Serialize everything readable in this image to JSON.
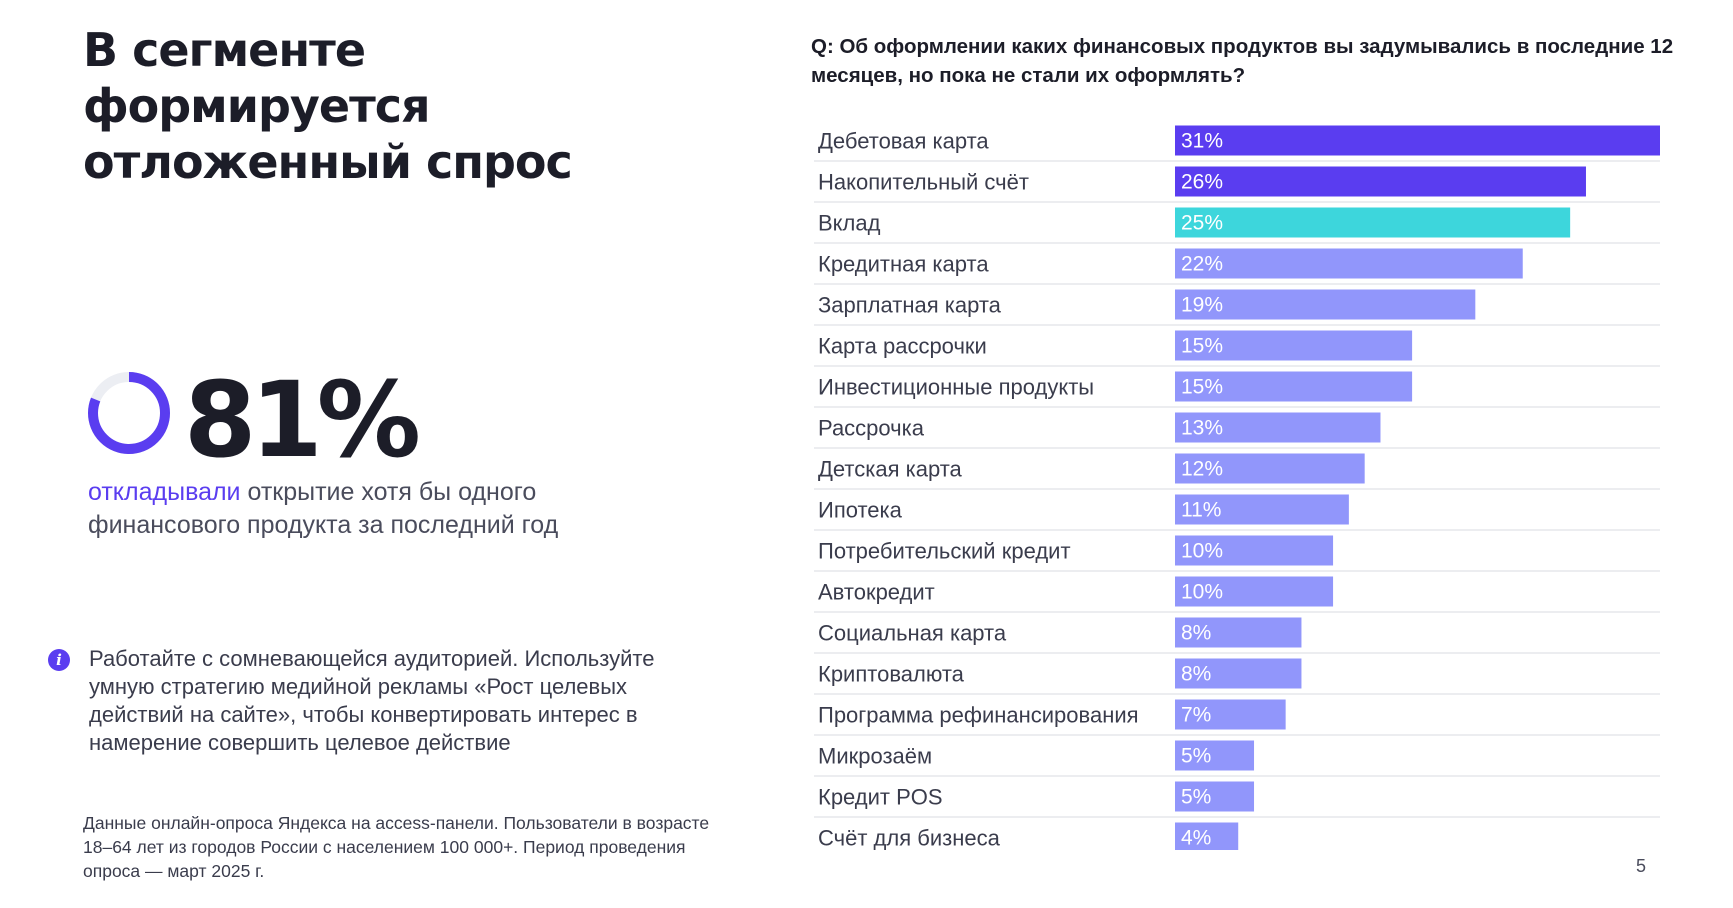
{
  "headline": "В сегменте формируется отложенный спрос",
  "stat": {
    "value": "81%",
    "fraction": 0.81,
    "caption_accent": "откладывали",
    "caption_rest": " открытие хотя бы одного финансового продукта за последний год"
  },
  "tip": {
    "icon": "info-icon",
    "icon_glyph": "i",
    "text": "Работайте с сомневающейся аудиторией. Используйте умную стратегию медийной рекламы «Рост целевых действий на сайте», чтобы конвертировать интерес в намерение совершить целевое действие"
  },
  "footnote": "Данные онлайн-опроса Яндекса на access-панели. Пользователи в возрасте 18–64 лет из городов России с населением 100 000+. Период проведения опроса — март 2025 г.",
  "page_number": "5",
  "colors": {
    "dark_violet": "#5a3df0",
    "turquoise": "#3dd6dc",
    "light_violet": "#9196fb",
    "donut_track": "#eceef3"
  },
  "chart_data": {
    "type": "bar",
    "orientation": "horizontal",
    "title": "Q: Об оформлении каких финансовых продуктов вы задумывались в последние 12 месяцев, но пока не стали их оформлять?",
    "categories": [
      "Дебетовая карта",
      "Накопительный счёт",
      "Вклад",
      "Кредитная карта",
      "Зарплатная карта",
      "Карта рассрочки",
      "Инвестиционные продукты",
      "Рассрочка",
      "Детская карта",
      "Ипотека",
      "Потребительский кредит",
      "Автокредит",
      "Социальная карта",
      "Криптовалюта",
      "Программа рефинансирования",
      "Микрозаём",
      "Кредит POS",
      "Счёт для бизнеса"
    ],
    "values": [
      31,
      26,
      25,
      22,
      19,
      15,
      15,
      13,
      12,
      11,
      10,
      10,
      8,
      8,
      7,
      5,
      5,
      4
    ],
    "labels": [
      "31%",
      "26%",
      "25%",
      "22%",
      "19%",
      "15%",
      "15%",
      "13%",
      "12%",
      "11%",
      "10%",
      "10%",
      "8%",
      "8%",
      "7%",
      "5%",
      "5%",
      "4%"
    ],
    "bar_colors": [
      "dark_violet",
      "dark_violet",
      "turquoise",
      "light_violet",
      "light_violet",
      "light_violet",
      "light_violet",
      "light_violet",
      "light_violet",
      "light_violet",
      "light_violet",
      "light_violet",
      "light_violet",
      "light_violet",
      "light_violet",
      "light_violet",
      "light_violet",
      "light_violet"
    ],
    "xlim": [
      0,
      31
    ],
    "grid": false,
    "legend": "none"
  }
}
